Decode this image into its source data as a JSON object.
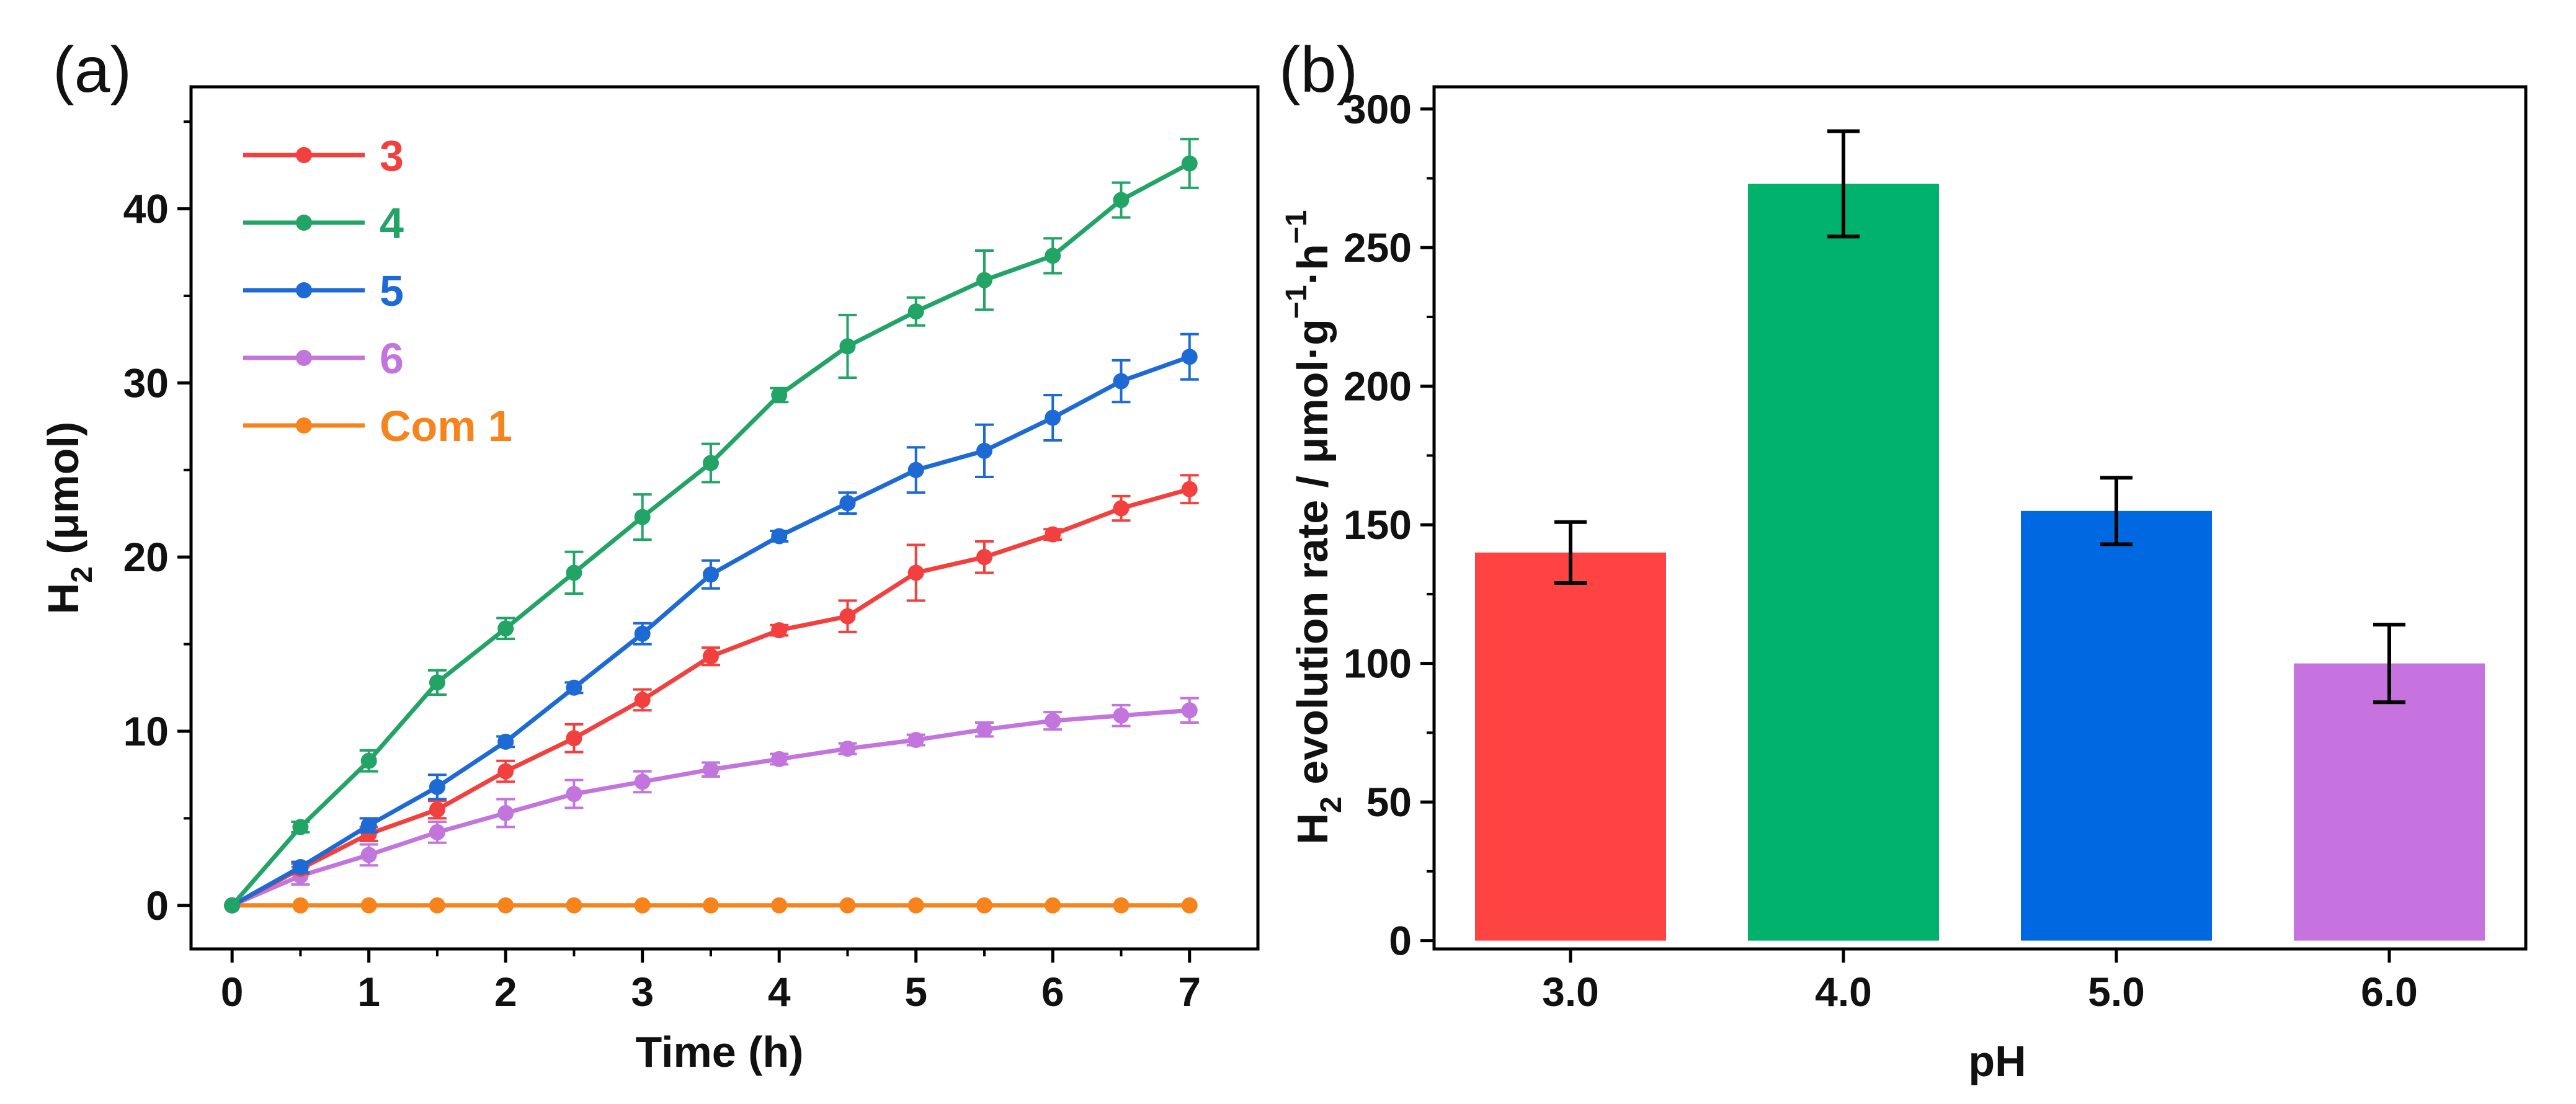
{
  "chart_data": [
    {
      "panel_label": "(a)",
      "type": "line",
      "xlabel": "Time (h)",
      "ylabel_main": "H",
      "ylabel_sub": "2",
      "ylabel_rest": " (μmol)",
      "xlim": [
        -0.3,
        7.5
      ],
      "ylim": [
        -2.5,
        47
      ],
      "xticks": [
        0,
        1,
        2,
        3,
        4,
        5,
        6,
        7
      ],
      "yticks": [
        0,
        10,
        20,
        30,
        40
      ],
      "legend_position": "top-left",
      "x": [
        0,
        0.5,
        1,
        1.5,
        2,
        2.5,
        3,
        3.5,
        4,
        4.5,
        5,
        5.5,
        6,
        6.5,
        7
      ],
      "series": [
        {
          "name": "3",
          "color": "#f2403f",
          "values": [
            0,
            2.1,
            4.1,
            5.5,
            7.7,
            9.6,
            11.8,
            14.3,
            15.8,
            16.6,
            19.1,
            20.0,
            21.3,
            22.8,
            23.9
          ],
          "errors": [
            0,
            0.3,
            0.4,
            0.5,
            0.6,
            0.8,
            0.6,
            0.5,
            0.3,
            0.9,
            1.6,
            0.9,
            0.3,
            0.7,
            0.8
          ]
        },
        {
          "name": "4",
          "color": "#23a467",
          "values": [
            0,
            4.5,
            8.3,
            12.8,
            15.9,
            19.1,
            22.3,
            25.4,
            29.3,
            32.1,
            34.1,
            35.9,
            37.3,
            40.5,
            42.6
          ],
          "errors": [
            0,
            0.3,
            0.6,
            0.7,
            0.6,
            1.2,
            1.3,
            1.1,
            0.4,
            1.8,
            0.8,
            1.7,
            1.0,
            1.0,
            1.4
          ]
        },
        {
          "name": "5",
          "color": "#1e6ad4",
          "values": [
            0,
            2.2,
            4.6,
            6.8,
            9.4,
            12.5,
            15.6,
            19.0,
            21.2,
            23.1,
            25.0,
            26.1,
            28.0,
            30.1,
            31.5
          ],
          "errors": [
            0,
            0.3,
            0.4,
            0.7,
            0.3,
            0.3,
            0.6,
            0.8,
            0.3,
            0.6,
            1.3,
            1.5,
            1.3,
            1.2,
            1.3
          ]
        },
        {
          "name": "6",
          "color": "#c276dd",
          "values": [
            0,
            1.7,
            2.9,
            4.2,
            5.3,
            6.4,
            7.1,
            7.8,
            8.4,
            9.0,
            9.5,
            10.1,
            10.6,
            10.9,
            11.2
          ],
          "errors": [
            0,
            0.5,
            0.6,
            0.6,
            0.8,
            0.8,
            0.6,
            0.4,
            0.3,
            0.3,
            0.3,
            0.4,
            0.5,
            0.6,
            0.7
          ]
        },
        {
          "name": "Com 1",
          "color": "#f6831b",
          "values": [
            0,
            0,
            0,
            0,
            0,
            0,
            0,
            0,
            0,
            0,
            0,
            0,
            0,
            0,
            0
          ],
          "errors": [
            0,
            0,
            0,
            0,
            0,
            0,
            0,
            0,
            0,
            0,
            0,
            0,
            0,
            0,
            0
          ]
        }
      ]
    },
    {
      "panel_label": "(b)",
      "type": "bar",
      "xlabel": "pH",
      "ylabel_main": "H",
      "ylabel_sub": "2",
      "ylabel_rest": " evolution rate / μmol·g",
      "ylabel_sup1": "−1",
      "ylabel_mid": "·h",
      "ylabel_sup2": "−1",
      "ylim": [
        -3,
        308
      ],
      "yticks": [
        0,
        50,
        100,
        150,
        200,
        250,
        300
      ],
      "categories": [
        "3.0",
        "4.0",
        "5.0",
        "6.0"
      ],
      "values": [
        140,
        273,
        155,
        100
      ],
      "errors": [
        11,
        19,
        12,
        14
      ],
      "colors": [
        "#ff4242",
        "#00b26b",
        "#0069e2",
        "#c673e0"
      ]
    }
  ]
}
